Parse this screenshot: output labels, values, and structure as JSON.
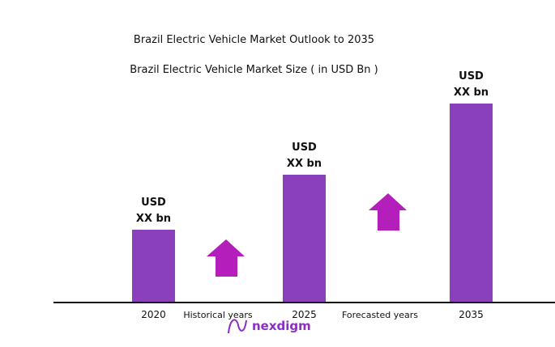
{
  "chart_data": {
    "type": "bar",
    "title": "Brazil Electric Vehicle Market Outlook to 2035",
    "subtitle": "Brazil Electric Vehicle Market Size ( in USD Bn )",
    "categories": [
      "2020",
      "2025",
      "2035"
    ],
    "values": [
      90,
      158,
      246
    ],
    "data_labels": [
      [
        "USD",
        "XX bn"
      ],
      [
        "USD",
        "XX bn"
      ],
      [
        "USD",
        "XX bn"
      ]
    ],
    "annotations": [
      "Historical years",
      "Forecasted years"
    ],
    "xlabel": "",
    "ylabel": "",
    "grid": false,
    "bar_color": "#8a40bb",
    "arrow_color": "#b41fbb"
  },
  "logo": {
    "text": "nexdigm",
    "color": "#8a2fc0"
  }
}
